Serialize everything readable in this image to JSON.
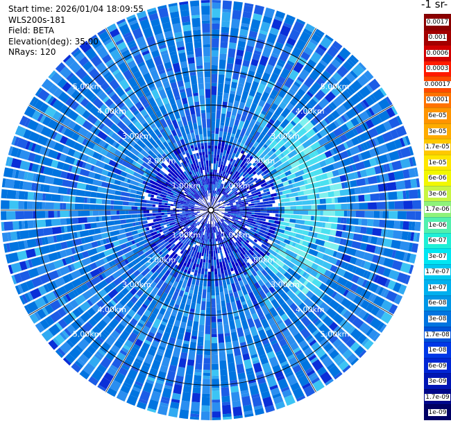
{
  "header": {
    "start_time": "Start time: 2026/01/04 18:09:55",
    "instrument": "WLS200s-181",
    "field": "Field: BETA",
    "elevation": "Elevation(deg): 35.00",
    "nrays": "NRays: 120"
  },
  "colorbar": {
    "title": "-1 sr-",
    "levels": [
      {
        "label": "0.0017",
        "color": "#8b0000"
      },
      {
        "label": "0.001",
        "color": "#a30000"
      },
      {
        "label": "0.0006",
        "color": "#d10000"
      },
      {
        "label": "0.0003",
        "color": "#ff1a00"
      },
      {
        "label": "0.00017",
        "color": "#ff4a00"
      },
      {
        "label": "0.0001",
        "color": "#ff7200"
      },
      {
        "label": "6e-05",
        "color": "#ff9400"
      },
      {
        "label": "3e-05",
        "color": "#ffab00"
      },
      {
        "label": "1.7e-05",
        "color": "#ffc800"
      },
      {
        "label": "1e-05",
        "color": "#ffe600"
      },
      {
        "label": "6e-06",
        "color": "#f2f700"
      },
      {
        "label": "3e-06",
        "color": "#c8f542"
      },
      {
        "label": "1.7e-06",
        "color": "#8ff27a"
      },
      {
        "label": "1e-06",
        "color": "#52f0ae"
      },
      {
        "label": "6e-07",
        "color": "#20efd6"
      },
      {
        "label": "3e-07",
        "color": "#00e6f2"
      },
      {
        "label": "1.7e-07",
        "color": "#00c8f0"
      },
      {
        "label": "1e-07",
        "color": "#00b0ee"
      },
      {
        "label": "6e-08",
        "color": "#0096e6"
      },
      {
        "label": "3e-08",
        "color": "#0074e0"
      },
      {
        "label": "1.7e-08",
        "color": "#0052d8"
      },
      {
        "label": "1e-08",
        "color": "#0038e6"
      },
      {
        "label": "6e-09",
        "color": "#0026d4"
      },
      {
        "label": "3e-09",
        "color": "#0016b4"
      },
      {
        "label": "1.7e-09",
        "color": "#00088a"
      },
      {
        "label": "1e-09",
        "color": "#000064"
      }
    ]
  },
  "chart_data": {
    "type": "heatmap",
    "projection": "polar-ppi",
    "field": "BETA",
    "elevation_deg": 35.0,
    "n_rays": 120,
    "range_rings_km": [
      1,
      2,
      3,
      4,
      5
    ],
    "range_ring_labels": [
      "1.00km",
      "2.00km",
      "3.00km",
      "4.00km",
      "5.00km"
    ],
    "max_range_km": 6.0,
    "scale": "log",
    "dominant_level": "3e-08",
    "near_range_level": "1e-08",
    "enhanced_region": {
      "azimuth_deg": [
        40,
        135
      ],
      "range_km": [
        2.0,
        3.6
      ],
      "level": "1.7e-07"
    },
    "spoke_azimuths_deg": [
      0,
      30,
      60,
      90,
      120,
      150,
      180,
      210,
      240,
      270,
      300,
      330
    ]
  }
}
